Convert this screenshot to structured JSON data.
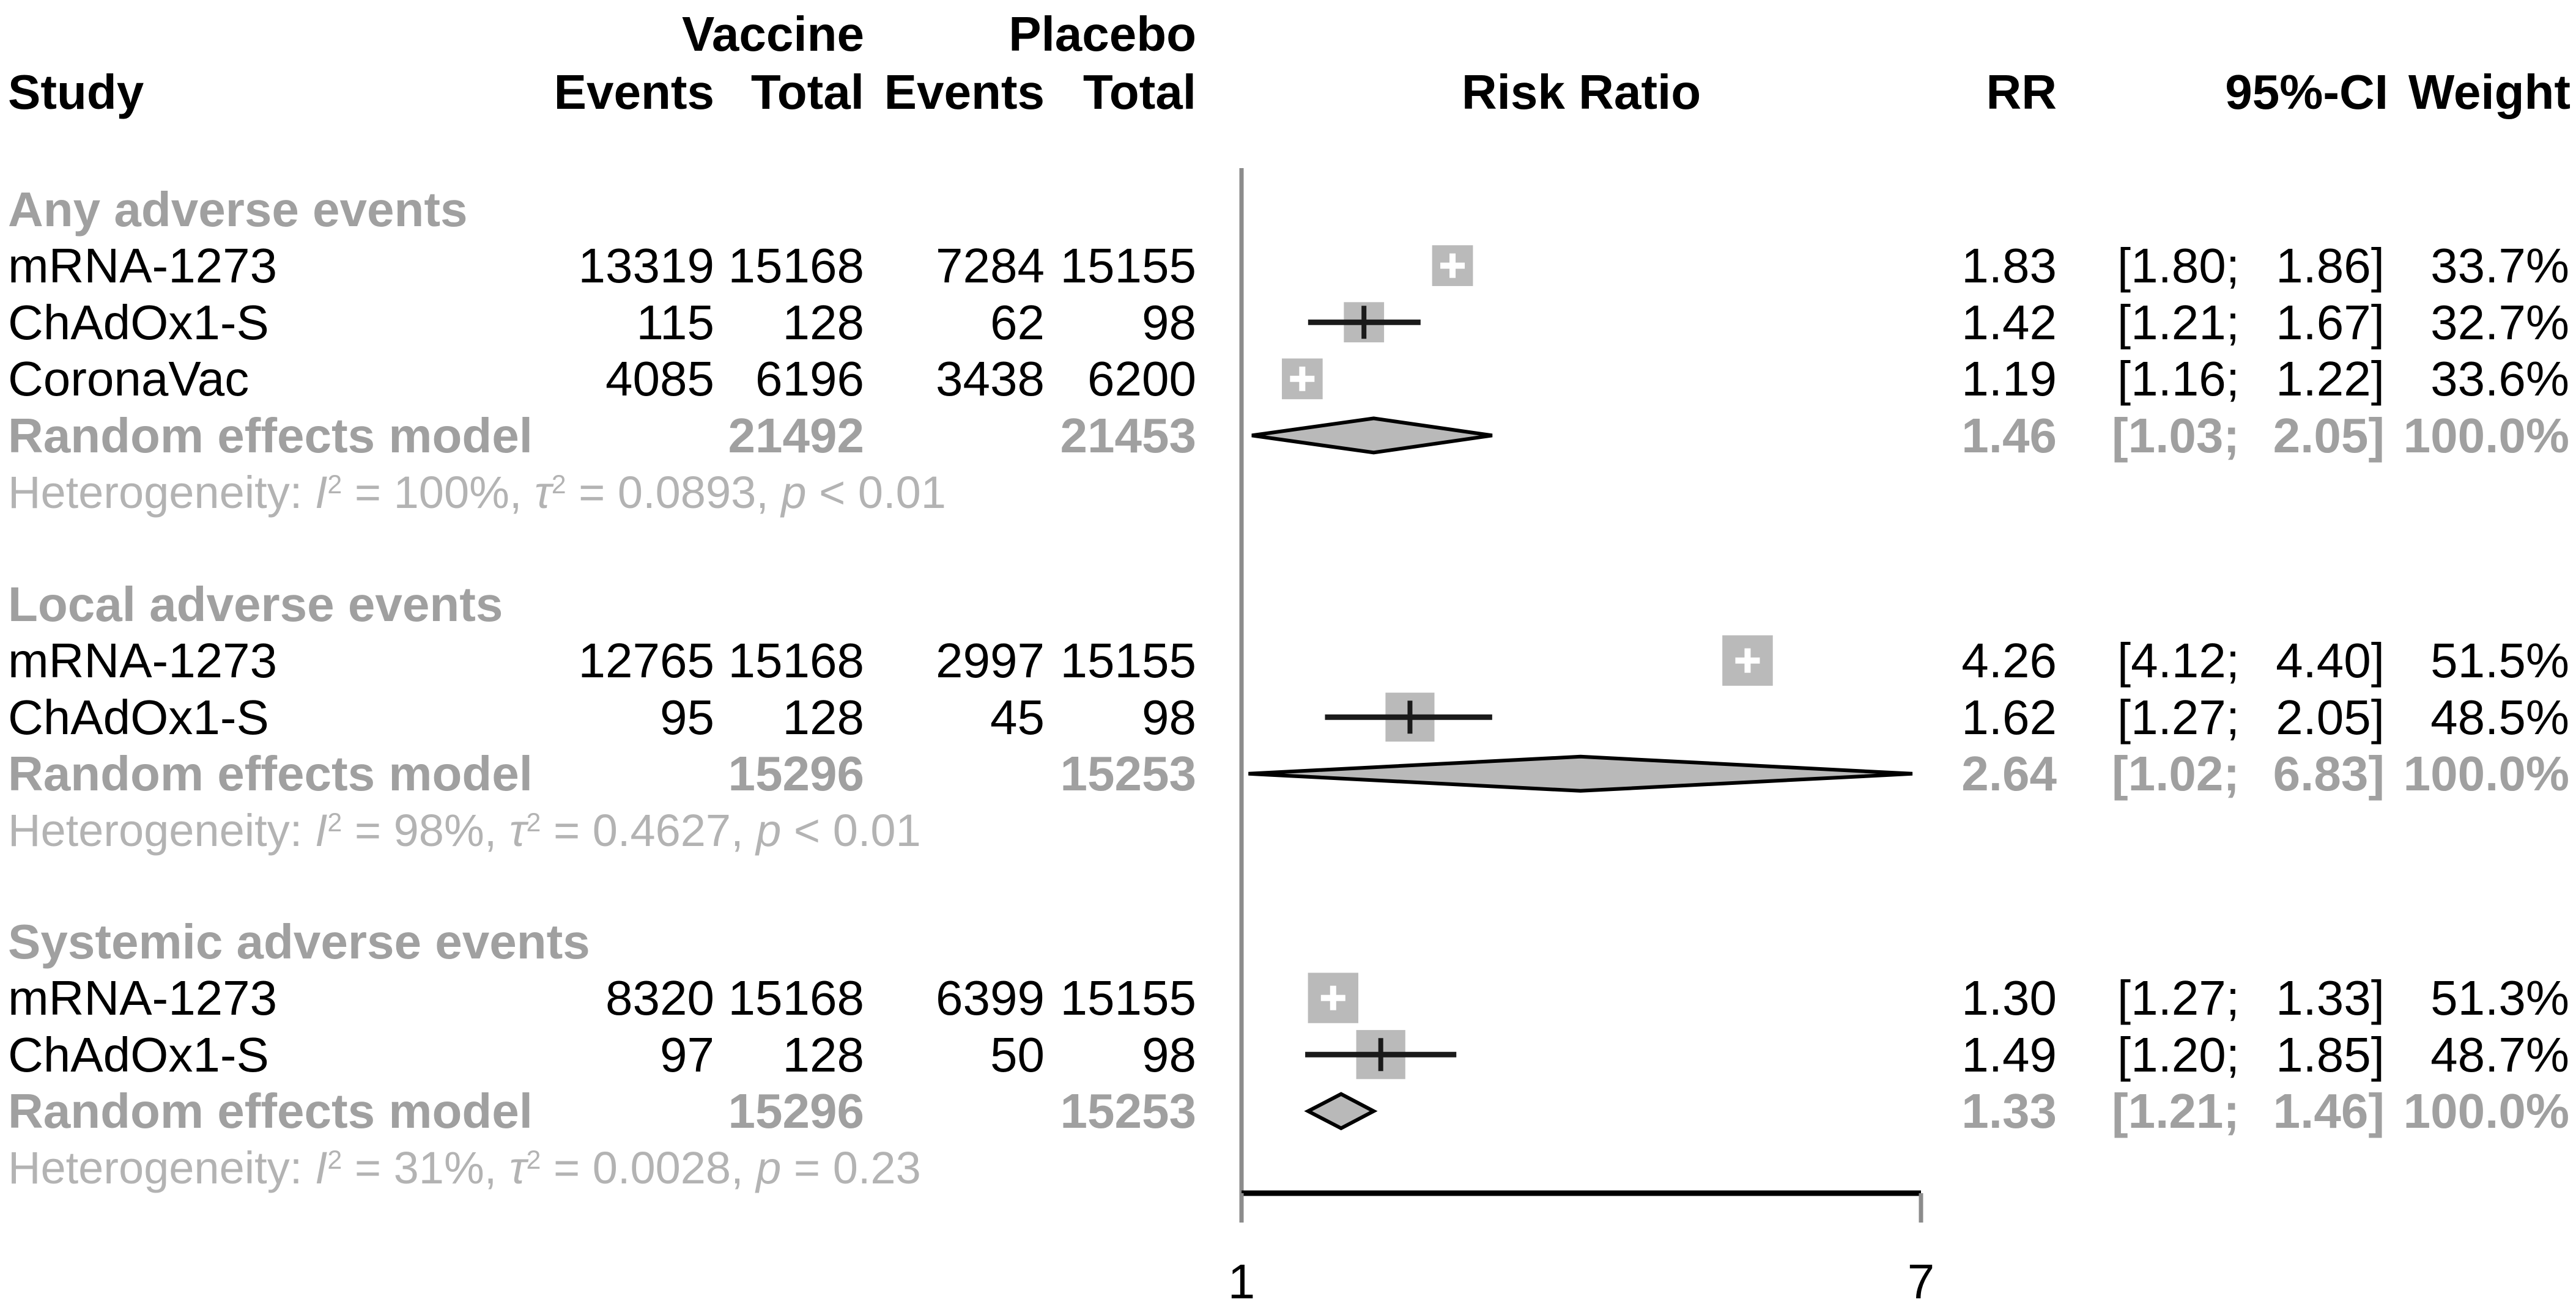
{
  "header": {
    "study": "Study",
    "vaccine": "Vaccine",
    "placebo": "Placebo",
    "events": "Events",
    "total": "Total",
    "risk_ratio": "Risk Ratio",
    "rr": "RR",
    "ci": "95%-CI",
    "weight": "Weight"
  },
  "axis": {
    "min": "1",
    "max": "7"
  },
  "chart_data": {
    "type": "forest",
    "scale": "log",
    "xlim": [
      1,
      7
    ],
    "x_tick_labels": [
      "1",
      "7"
    ],
    "effect_measure": "Risk Ratio",
    "style": {
      "square_color": "#bababa",
      "diamond_fill": "#b9b9b9",
      "diamond_stroke": "#000000",
      "ci_line_color": "#1a1a1a",
      "axis_color": "#000000",
      "ref_line_color": "#8c8c8c",
      "group_label_color": "#a0a0a0",
      "heterogeneity_color": "#b3b3b3"
    },
    "groups": [
      {
        "label": "Any adverse events",
        "studies": [
          {
            "study": "mRNA-1273",
            "vaccine_events": "13319",
            "vaccine_total": "15168",
            "placebo_events": "7284",
            "placebo_total": "15155",
            "rr": 1.83,
            "ci_low": 1.8,
            "ci_high": 1.86,
            "rr_text": "1.83",
            "ci_text_low": "[1.80;",
            "ci_text_high": "1.86]",
            "weight": 33.7,
            "weight_text": "33.7%"
          },
          {
            "study": "ChAdOx1-S",
            "vaccine_events": "115",
            "vaccine_total": "128",
            "placebo_events": "62",
            "placebo_total": "98",
            "rr": 1.42,
            "ci_low": 1.21,
            "ci_high": 1.67,
            "rr_text": "1.42",
            "ci_text_low": "[1.21;",
            "ci_text_high": "1.67]",
            "weight": 32.7,
            "weight_text": "32.7%"
          },
          {
            "study": "CoronaVac",
            "vaccine_events": "4085",
            "vaccine_total": "6196",
            "placebo_events": "3438",
            "placebo_total": "6200",
            "rr": 1.19,
            "ci_low": 1.16,
            "ci_high": 1.22,
            "rr_text": "1.19",
            "ci_text_low": "[1.16;",
            "ci_text_high": "1.22]",
            "weight": 33.6,
            "weight_text": "33.6%"
          }
        ],
        "pooled": {
          "label": "Random effects model",
          "vaccine_total": "21492",
          "placebo_total": "21453",
          "rr": 1.46,
          "ci_low": 1.03,
          "ci_high": 2.05,
          "rr_text": "1.46",
          "ci_text_low": "[1.03;",
          "ci_text_high": "2.05]",
          "weight_text": "100.0%"
        },
        "heterogeneity": {
          "segments": [
            {
              "text": "Heterogeneity: "
            },
            {
              "text": "I",
              "italic": true
            },
            {
              "text": "2",
              "sup": true
            },
            {
              "text": " = 100%, "
            },
            {
              "text": "τ",
              "italic": true
            },
            {
              "text": "2",
              "sup": true
            },
            {
              "text": " = 0.0893, "
            },
            {
              "text": "p",
              "italic": true
            },
            {
              "text": " < 0.01"
            }
          ]
        }
      },
      {
        "label": "Local adverse events",
        "studies": [
          {
            "study": "mRNA-1273",
            "vaccine_events": "12765",
            "vaccine_total": "15168",
            "placebo_events": "2997",
            "placebo_total": "15155",
            "rr": 4.26,
            "ci_low": 4.12,
            "ci_high": 4.4,
            "rr_text": "4.26",
            "ci_text_low": "[4.12;",
            "ci_text_high": "4.40]",
            "weight": 51.5,
            "weight_text": "51.5%"
          },
          {
            "study": "ChAdOx1-S",
            "vaccine_events": "95",
            "vaccine_total": "128",
            "placebo_events": "45",
            "placebo_total": "98",
            "rr": 1.62,
            "ci_low": 1.27,
            "ci_high": 2.05,
            "rr_text": "1.62",
            "ci_text_low": "[1.27;",
            "ci_text_high": "2.05]",
            "weight": 48.5,
            "weight_text": "48.5%"
          }
        ],
        "pooled": {
          "label": "Random effects model",
          "vaccine_total": "15296",
          "placebo_total": "15253",
          "rr": 2.64,
          "ci_low": 1.02,
          "ci_high": 6.83,
          "rr_text": "2.64",
          "ci_text_low": "[1.02;",
          "ci_text_high": "6.83]",
          "weight_text": "100.0%"
        },
        "heterogeneity": {
          "segments": [
            {
              "text": "Heterogeneity: "
            },
            {
              "text": "I",
              "italic": true
            },
            {
              "text": "2",
              "sup": true
            },
            {
              "text": " = 98%, "
            },
            {
              "text": "τ",
              "italic": true
            },
            {
              "text": "2",
              "sup": true
            },
            {
              "text": " = 0.4627, "
            },
            {
              "text": "p",
              "italic": true
            },
            {
              "text": " < 0.01"
            }
          ]
        }
      },
      {
        "label": "Systemic adverse events",
        "studies": [
          {
            "study": "mRNA-1273",
            "vaccine_events": "8320",
            "vaccine_total": "15168",
            "placebo_events": "6399",
            "placebo_total": "15155",
            "rr": 1.3,
            "ci_low": 1.27,
            "ci_high": 1.33,
            "rr_text": "1.30",
            "ci_text_low": "[1.27;",
            "ci_text_high": "1.33]",
            "weight": 51.3,
            "weight_text": "51.3%"
          },
          {
            "study": "ChAdOx1-S",
            "vaccine_events": "97",
            "vaccine_total": "128",
            "placebo_events": "50",
            "placebo_total": "98",
            "rr": 1.49,
            "ci_low": 1.2,
            "ci_high": 1.85,
            "rr_text": "1.49",
            "ci_text_low": "[1.20;",
            "ci_text_high": "1.85]",
            "weight": 48.7,
            "weight_text": "48.7%"
          }
        ],
        "pooled": {
          "label": "Random effects model",
          "vaccine_total": "15296",
          "placebo_total": "15253",
          "rr": 1.33,
          "ci_low": 1.21,
          "ci_high": 1.46,
          "rr_text": "1.33",
          "ci_text_low": "[1.21;",
          "ci_text_high": "1.46]",
          "weight_text": "100.0%"
        },
        "heterogeneity": {
          "segments": [
            {
              "text": "Heterogeneity: "
            },
            {
              "text": "I",
              "italic": true
            },
            {
              "text": "2",
              "sup": true
            },
            {
              "text": " = 31%, "
            },
            {
              "text": "τ",
              "italic": true
            },
            {
              "text": "2",
              "sup": true
            },
            {
              "text": " = 0.0028, "
            },
            {
              "text": "p",
              "italic": true
            },
            {
              "text": " = 0.23"
            }
          ]
        }
      }
    ]
  }
}
